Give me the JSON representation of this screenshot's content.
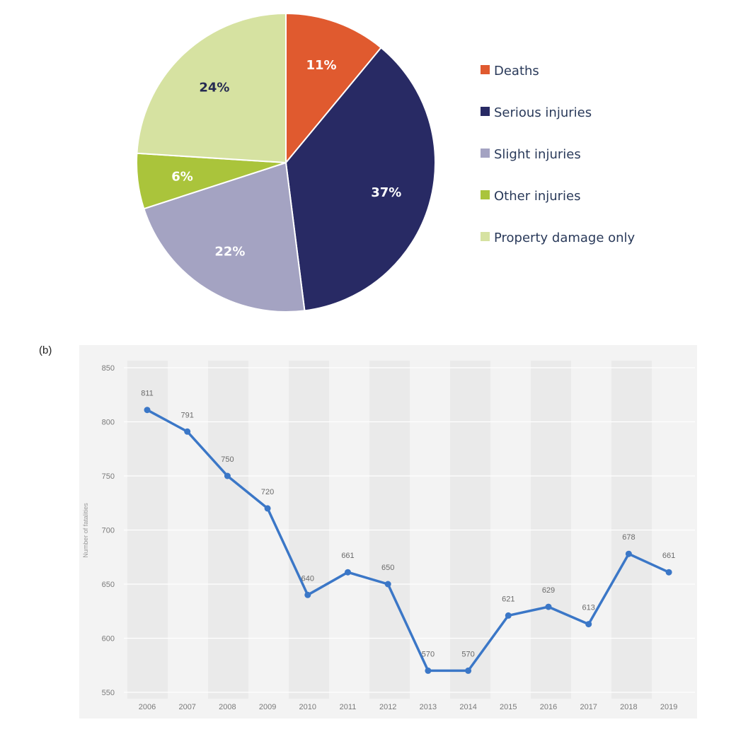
{
  "chart_data": [
    {
      "type": "pie",
      "labels": [
        "Deaths",
        "Serious injuries",
        "Slight injuries",
        "Other injuries",
        "Property damage only"
      ],
      "values": [
        11,
        37,
        22,
        6,
        24
      ],
      "value_labels": [
        "11%",
        "37%",
        "22%",
        "6%",
        "24%"
      ],
      "colors": [
        "#e05a2f",
        "#282a64",
        "#a4a3c2",
        "#aac43b",
        "#d6e2a1"
      ],
      "label_colors": [
        "#ffffff",
        "#ffffff",
        "#ffffff",
        "#ffffff",
        "#262b52"
      ],
      "legend": {
        "position": "right"
      },
      "title": ""
    },
    {
      "type": "line",
      "panel_label": "(b)",
      "categories": [
        "2006",
        "2007",
        "2008",
        "2009",
        "2010",
        "2011",
        "2012",
        "2013",
        "2014",
        "2015",
        "2016",
        "2017",
        "2018",
        "2019"
      ],
      "series": [
        {
          "values": [
            811,
            791,
            750,
            720,
            640,
            661,
            650,
            570,
            570,
            621,
            629,
            613,
            678,
            661
          ],
          "data_labels": [
            "811",
            "791",
            "750",
            "720",
            "640",
            "661",
            "650",
            "570",
            "570",
            "621",
            "629",
            "613",
            "678",
            "661"
          ],
          "color": "#3b77c7"
        }
      ],
      "ylim": [
        550,
        850
      ],
      "yticks": [
        "550",
        "600",
        "650",
        "700",
        "750",
        "800",
        "850"
      ],
      "ytick_values": [
        550,
        600,
        650,
        700,
        750,
        800,
        850
      ],
      "ylabel": "Number of fatalities",
      "xlabel": "",
      "grid": true,
      "title": ""
    }
  ]
}
